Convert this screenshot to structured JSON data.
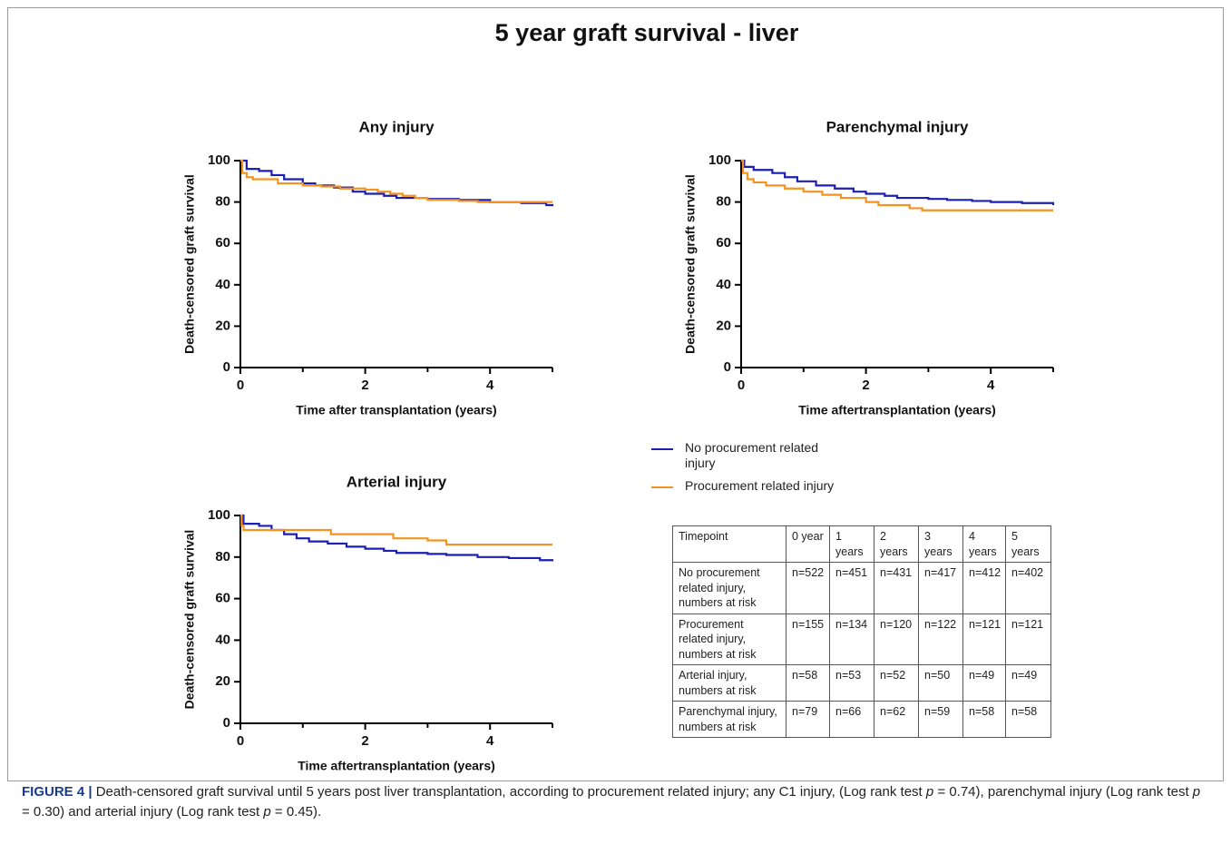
{
  "title": "5 year graft survival - liver",
  "chart_data": [
    {
      "type": "line",
      "step": true,
      "title": "Any injury",
      "ylabel": "Death-censored graft survival",
      "xlabel": "Time after transplantation (years)",
      "xlim": [
        0,
        5
      ],
      "ylim": [
        0,
        100
      ],
      "xticks": [
        0,
        2,
        4
      ],
      "xminor_ticks": [
        1,
        3,
        5
      ],
      "yticks": [
        0,
        20,
        40,
        60,
        80,
        100
      ],
      "series": [
        {
          "name": "No procurement related injury",
          "color": "#1c1fb4",
          "x": [
            0,
            0.1,
            0.3,
            0.5,
            0.7,
            1,
            1.2,
            1.5,
            1.8,
            2,
            2.3,
            2.5,
            3,
            3.5,
            4,
            4.5,
            4.9,
            5
          ],
          "values": [
            100,
            96,
            95,
            93,
            91,
            89,
            88,
            87,
            85,
            84,
            83,
            82,
            81.5,
            81,
            80,
            79.5,
            78.5,
            78
          ]
        },
        {
          "name": "Procurement related injury",
          "color": "#f59220",
          "x": [
            0,
            0.03,
            0.1,
            0.2,
            0.6,
            1,
            1.3,
            1.6,
            2,
            2.2,
            2.4,
            2.6,
            2.8,
            3,
            3.5,
            3.8,
            5
          ],
          "values": [
            100,
            94,
            92,
            91,
            89,
            88,
            87.5,
            86.5,
            86,
            85,
            84,
            83,
            82,
            81,
            80.5,
            80,
            80
          ]
        }
      ]
    },
    {
      "type": "line",
      "step": true,
      "title": "Parenchymal injury",
      "ylabel": "Death-censored graft survival",
      "xlabel": "Time aftertransplantation (years)",
      "xlim": [
        0,
        5
      ],
      "ylim": [
        0,
        100
      ],
      "xticks": [
        0,
        2,
        4
      ],
      "xminor_ticks": [
        1,
        3,
        5
      ],
      "yticks": [
        0,
        20,
        40,
        60,
        80,
        100
      ],
      "series": [
        {
          "name": "No procurement related injury",
          "color": "#1c1fb4",
          "x": [
            0,
            0.05,
            0.2,
            0.5,
            0.7,
            0.9,
            1.2,
            1.5,
            1.8,
            2,
            2.3,
            2.5,
            3,
            3.3,
            3.7,
            4,
            4.5,
            5
          ],
          "values": [
            100,
            97,
            95.5,
            94,
            92,
            90,
            88,
            86.5,
            85,
            84,
            83,
            82,
            81.5,
            81,
            80.5,
            80,
            79.5,
            78.5
          ]
        },
        {
          "name": "Procurement related injury",
          "color": "#f59220",
          "x": [
            0,
            0.03,
            0.1,
            0.2,
            0.4,
            0.7,
            1,
            1.3,
            1.6,
            2,
            2.2,
            2.7,
            2.9,
            5
          ],
          "values": [
            100,
            94,
            91,
            89.5,
            88,
            86.5,
            85,
            83.5,
            82,
            80,
            78.5,
            77,
            76,
            76
          ]
        }
      ]
    },
    {
      "type": "line",
      "step": true,
      "title": "Arterial injury",
      "ylabel": "Death-censored graft survival",
      "xlabel": "Time aftertransplantation (years)",
      "xlim": [
        0,
        5
      ],
      "ylim": [
        0,
        100
      ],
      "xticks": [
        0,
        2,
        4
      ],
      "xminor_ticks": [
        1,
        3,
        5
      ],
      "yticks": [
        0,
        20,
        40,
        60,
        80,
        100
      ],
      "series": [
        {
          "name": "No procurement related injury",
          "color": "#1c1fb4",
          "x": [
            0,
            0.05,
            0.3,
            0.5,
            0.7,
            0.9,
            1.1,
            1.4,
            1.7,
            2,
            2.3,
            2.5,
            3,
            3.3,
            3.8,
            4.3,
            4.8,
            5
          ],
          "values": [
            100,
            96,
            95,
            93,
            91,
            89,
            87.5,
            86.5,
            85,
            84,
            83,
            82,
            81.5,
            81,
            80,
            79.5,
            78.5,
            78
          ]
        },
        {
          "name": "Procurement related injury",
          "color": "#f59220",
          "x": [
            0,
            0.02,
            0.05,
            1.4,
            1.45,
            2.4,
            2.45,
            3,
            3.3,
            5
          ],
          "values": [
            100,
            95,
            93,
            93,
            91,
            91,
            89,
            88,
            86,
            86
          ]
        }
      ]
    }
  ],
  "table": {
    "rows": [
      [
        "Timepoint",
        "0 year",
        "1 years",
        "2 years",
        "3 years",
        "4 years",
        "5 years"
      ],
      [
        "No procurement related injury, numbers at risk",
        "n=522",
        "n=451",
        "n=431",
        "n=417",
        "n=412",
        "n=402"
      ],
      [
        "Procurement related injury, numbers at risk",
        "n=155",
        "n=134",
        "n=120",
        "n=122",
        "n=121",
        "n=121"
      ],
      [
        "Arterial injury, numbers at risk",
        "n=58",
        "n=53",
        "n=52",
        "n=50",
        "n=49",
        "n=49"
      ],
      [
        "Parenchymal injury, numbers at risk",
        "n=79",
        "n=66",
        "n=62",
        "n=59",
        "n=58",
        "n=58"
      ]
    ]
  },
  "caption": {
    "label": "FIGURE 4 |",
    "parts": [
      " Death-censored graft survival until 5 years post liver transplantation, according to procurement related injury; any C1 injury, (Log rank test ",
      "p",
      " = 0.74), parenchymal injury (Log rank test ",
      "p",
      " = 0.30) and arterial injury (Log rank test ",
      "p",
      " = 0.45)."
    ]
  }
}
